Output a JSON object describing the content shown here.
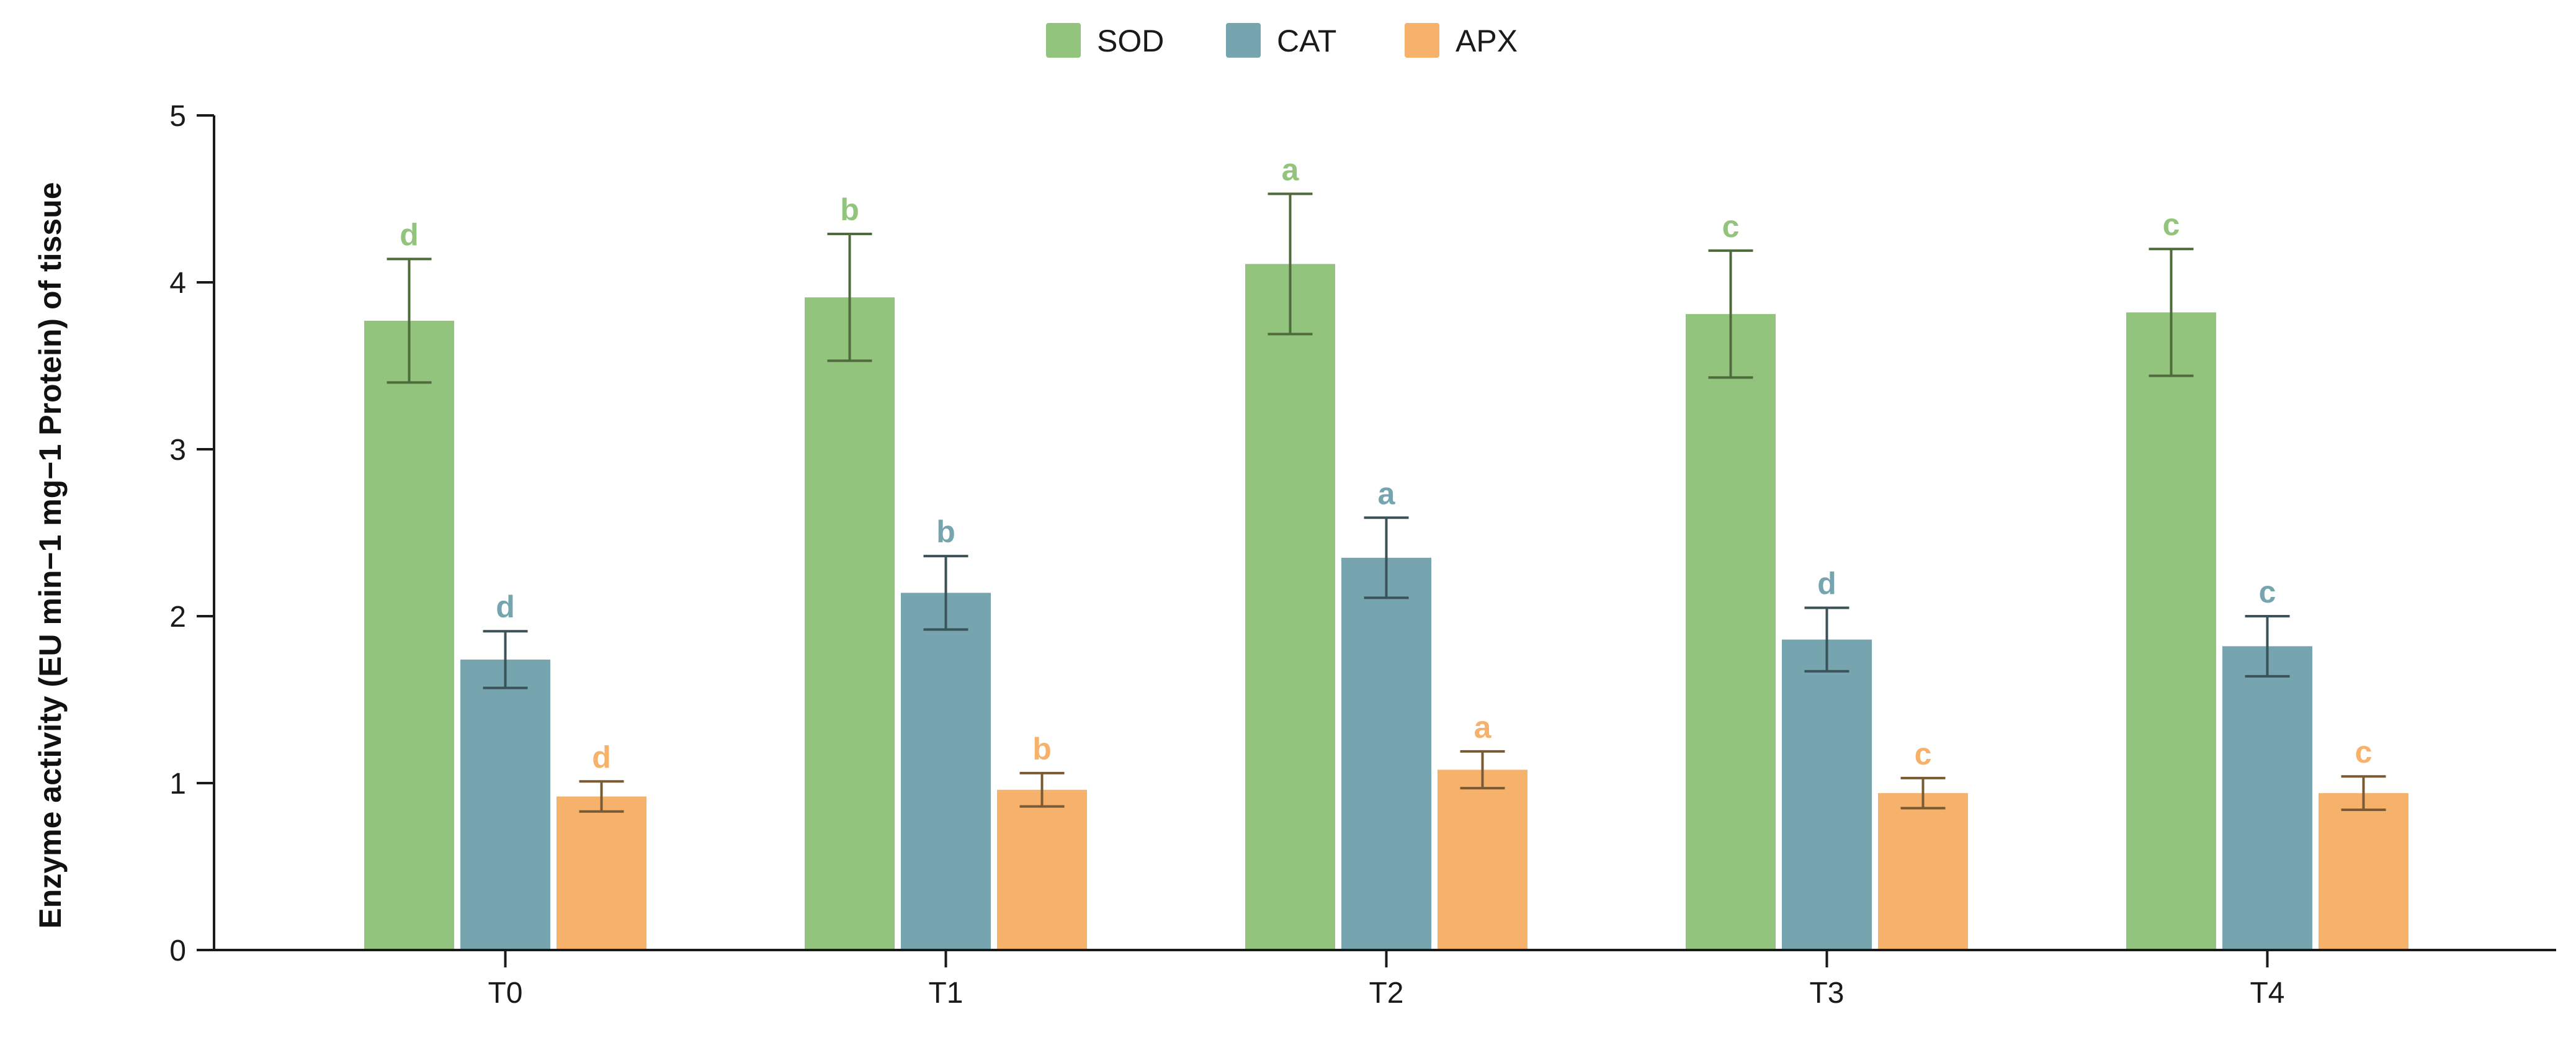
{
  "chart_data": {
    "type": "bar",
    "title": "",
    "xlabel": "",
    "ylabel": "Enzyme activity (EU min−1 mg−1 Protein) of tissue",
    "ylim": [
      0,
      5
    ],
    "yticks": [
      "0",
      "1",
      "2",
      "3",
      "4",
      "5"
    ],
    "categories": [
      "T0",
      "T1",
      "T2",
      "T3",
      "T4"
    ],
    "legend_position": "top-center",
    "series": [
      {
        "name": "SOD",
        "color": "#93c47d",
        "error_color": "#4e6b3c",
        "values": [
          3.77,
          3.91,
          4.11,
          3.81,
          3.82
        ],
        "errors": [
          0.37,
          0.38,
          0.42,
          0.38,
          0.38
        ],
        "letters": [
          "d",
          "b",
          "a",
          "c",
          "c"
        ]
      },
      {
        "name": "CAT",
        "color": "#76a5af",
        "error_color": "#3b5358",
        "values": [
          1.74,
          2.14,
          2.35,
          1.86,
          1.82
        ],
        "errors": [
          0.17,
          0.22,
          0.24,
          0.19,
          0.18
        ],
        "letters": [
          "d",
          "b",
          "a",
          "d",
          "c"
        ]
      },
      {
        "name": "APX",
        "color": "#f6b26b",
        "error_color": "#7a5a34",
        "values": [
          0.92,
          0.96,
          1.08,
          0.94,
          0.94
        ],
        "errors": [
          0.09,
          0.1,
          0.11,
          0.09,
          0.1
        ],
        "letters": [
          "d",
          "b",
          "a",
          "c",
          "c"
        ]
      }
    ]
  }
}
